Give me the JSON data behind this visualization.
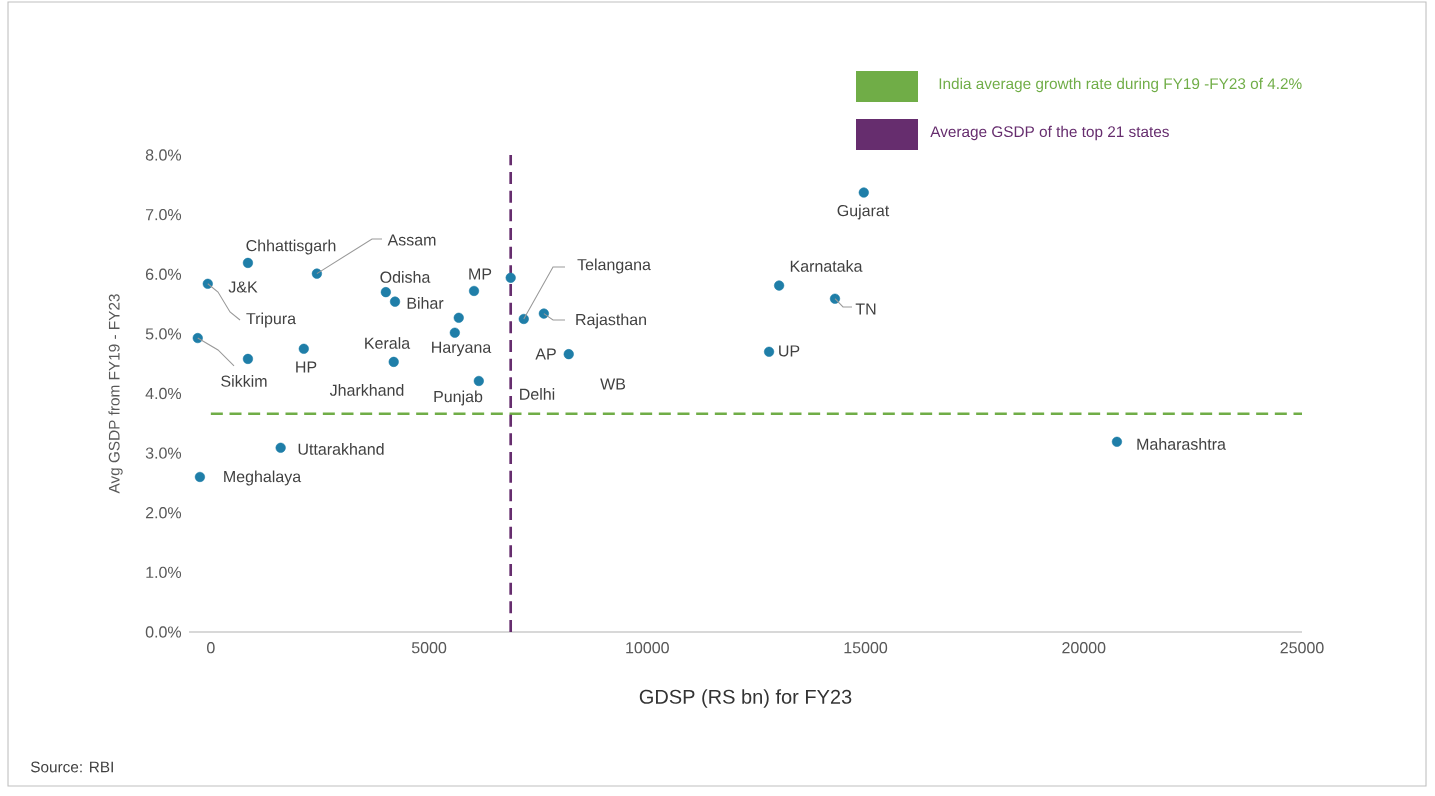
{
  "chart_data": {
    "type": "scatter",
    "xlabel": "GDSP (RS bn) for FY23",
    "ylabel": "Avg GSDP from FY19 - FY23",
    "x": [
      -70,
      -300,
      850,
      2430,
      2130,
      850,
      4010,
      4220,
      4190,
      6030,
      5680,
      5590,
      6140,
      6870,
      7170,
      7630,
      8200,
      1600,
      -250,
      14960,
      13020,
      14300,
      12790,
      20760
    ],
    "values": [
      5.84,
      4.93,
      6.19,
      6.01,
      4.75,
      4.58,
      5.7,
      5.54,
      4.53,
      5.72,
      5.27,
      5.02,
      4.21,
      5.94,
      5.25,
      5.34,
      4.66,
      3.09,
      2.6,
      7.37,
      5.81,
      5.59,
      4.7,
      3.19
    ],
    "color": "#1f7ea8",
    "marker": "circle",
    "xlim": [
      -500,
      25000
    ],
    "xticks": [
      0,
      5000,
      10000,
      15000,
      20000,
      25000
    ],
    "ylim": [
      0,
      8
    ],
    "yticks": [
      {
        "value": 0,
        "label": "0.0%"
      },
      {
        "value": 1,
        "label": "1.0%"
      },
      {
        "value": 2,
        "label": "2.0%"
      },
      {
        "value": 3,
        "label": "3.0%"
      },
      {
        "value": 4,
        "label": "4.0%"
      },
      {
        "value": 5,
        "label": "5.0%"
      },
      {
        "value": 6,
        "label": "6.0%"
      },
      {
        "value": 7,
        "label": "7.0%"
      },
      {
        "value": 8,
        "label": "8.0%"
      }
    ],
    "ref_lines": [
      {
        "axis": "y",
        "value": 3.66,
        "label": "India average growth rate  during FY19 -FY23 of 4.2%",
        "color": "#70ad47",
        "line_style": "dashed"
      },
      {
        "axis": "x",
        "value": 6870,
        "label": "Average GSDP of the top 21 states",
        "color": "#662d6e",
        "line_style": "dashed"
      }
    ],
    "legend": "top right",
    "annotations": [
      "Chhattisgarh",
      {
        "text": "Assam",
        "x": 2430,
        "y": 6.01
      },
      "Odisha",
      "J&K",
      "Bihar",
      "MP",
      {
        "text": "Tripura",
        "x": -70,
        "y": 5.84
      },
      "Kerala",
      "Haryana",
      {
        "text": "Sikkim",
        "x": -300,
        "y": 4.93
      },
      "HP",
      "Jharkhand",
      "Punjab",
      "Delhi",
      {
        "text": "Telangana",
        "x": 7170,
        "y": 5.25
      },
      {
        "text": "Rajasthan",
        "x": 7630,
        "y": 5.34
      },
      "AP",
      "WB",
      "Gujarat",
      "Karnataka",
      {
        "text": "TN",
        "x": 14300,
        "y": 5.59
      },
      "UP",
      "Uttarakhand",
      "Meghalaya",
      "Maharashtra",
      "Source: RBI"
    ]
  }
}
